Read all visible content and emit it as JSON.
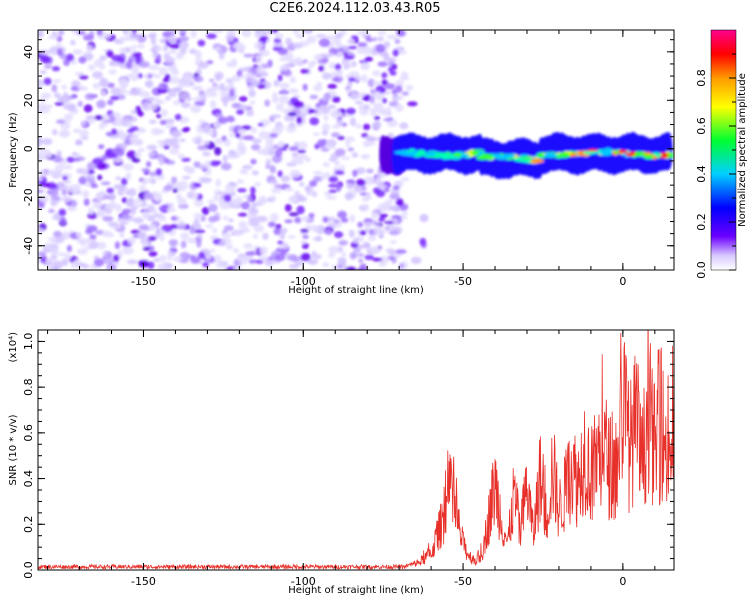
{
  "title": "C2E6.2024.112.03.43.R05",
  "chart_data": [
    {
      "type": "heatmap",
      "xlabel": "Height of straight line (km)",
      "ylabel": "Frequency (Hz)",
      "xlim": [
        -183,
        16
      ],
      "ylim": [
        -50,
        49
      ],
      "xticks": [
        -150,
        -100,
        -50,
        0
      ],
      "yticks": [
        -40,
        -20,
        0,
        20,
        40
      ],
      "colorbar": {
        "label": "Normalized spectral amplitude",
        "range": [
          0.0,
          1.0
        ],
        "ticks": [
          "0.0",
          "0.2",
          "0.4",
          "0.6",
          "0.8"
        ],
        "colors": [
          "#ffffff",
          "#5a00ff",
          "#0000ff",
          "#00c0ff",
          "#00ff40",
          "#ffff00",
          "#ff9000",
          "#ff0000",
          "#ff0080"
        ]
      },
      "features": [
        {
          "description_ref": "noise",
          "x_range": [
            -183,
            -68
          ],
          "y_range": [
            -50,
            49
          ],
          "amplitude": 0.05
        },
        {
          "description_ref": "signal_band",
          "x_range": [
            -75,
            15
          ],
          "center_frequency": -2,
          "bandwidth": 8
        }
      ]
    },
    {
      "type": "line",
      "xlabel": "Height of straight line (km)",
      "ylabel": "SNR (10 * v/v)",
      "yscale_label": "(x10⁴)",
      "xlim": [
        -183,
        16
      ],
      "ylim": [
        0,
        1.05
      ],
      "xticks": [
        -150,
        -100,
        -50,
        0
      ],
      "yticks": [
        "0.0",
        "0.2",
        "0.4",
        "0.6",
        "0.8",
        "1.0"
      ],
      "color": "#e8302a",
      "series": [
        {
          "x": [
            -183,
            -160,
            -140,
            -120,
            -100,
            -80,
            -70,
            -64,
            -60,
            -58,
            -56,
            -54,
            -52,
            -50,
            -48,
            -46,
            -44,
            -42,
            -40,
            -38,
            -36,
            -34,
            -32,
            -30,
            -28,
            -26,
            -24,
            -22,
            -20,
            -18,
            -16,
            -14,
            -12,
            -10,
            -8,
            -6,
            -4,
            -2,
            0,
            2,
            4,
            6,
            8,
            10,
            12,
            14,
            16
          ],
          "y": [
            0.01,
            0.012,
            0.01,
            0.012,
            0.01,
            0.012,
            0.015,
            0.04,
            0.1,
            0.2,
            0.32,
            0.45,
            0.3,
            0.15,
            0.08,
            0.05,
            0.1,
            0.3,
            0.5,
            0.3,
            0.15,
            0.45,
            0.2,
            0.5,
            0.2,
            0.55,
            0.3,
            0.6,
            0.35,
            0.45,
            0.6,
            0.5,
            0.7,
            0.55,
            0.65,
            0.72,
            0.6,
            0.55,
            1.02,
            0.7,
            0.85,
            0.6,
            0.95,
            0.7,
            0.85,
            0.65,
            0.8
          ]
        }
      ]
    }
  ]
}
